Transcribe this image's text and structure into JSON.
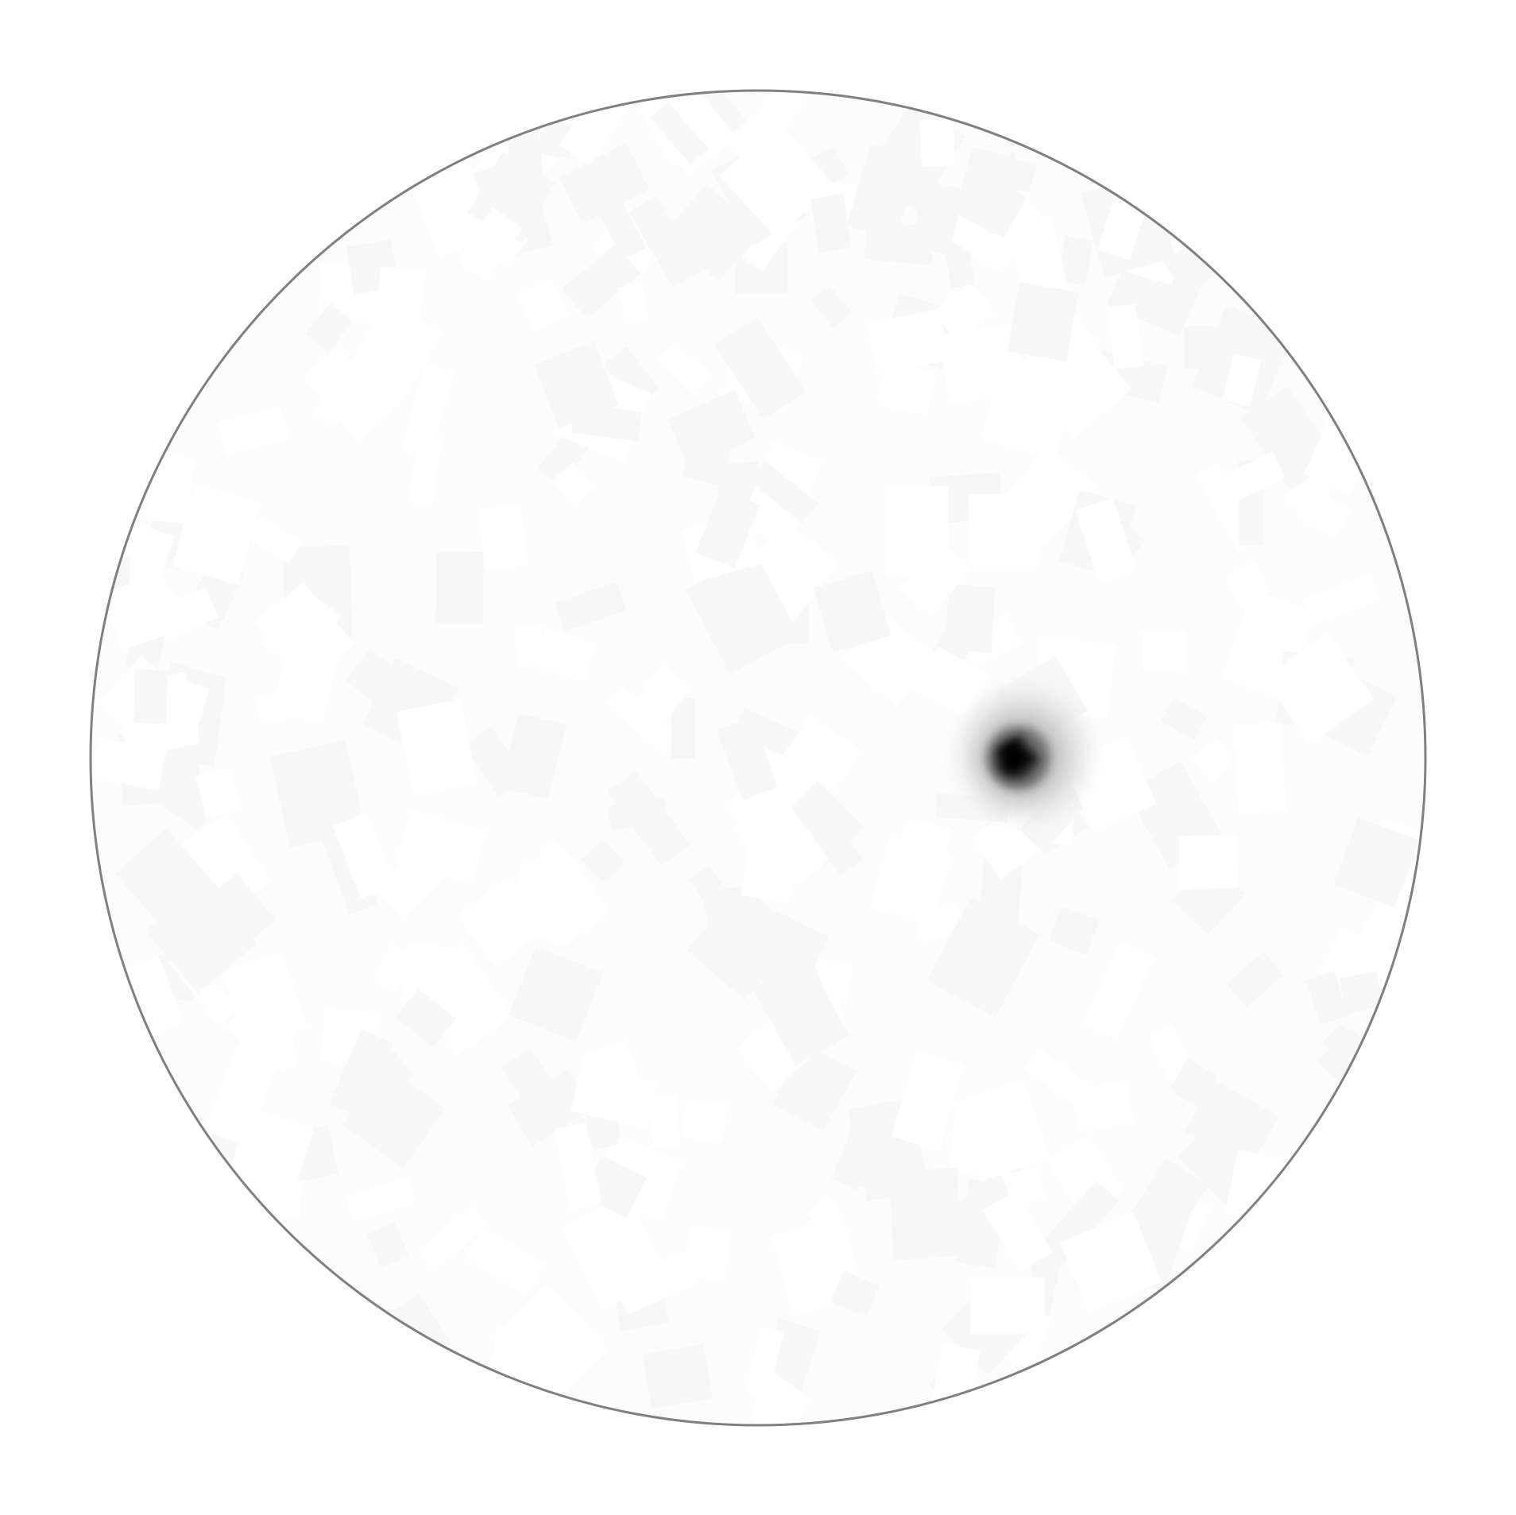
{
  "chart_data": {
    "type": "heatmap",
    "projection": "polar-disk",
    "title": "",
    "xlabel": "",
    "ylabel": "",
    "grid": false,
    "legend": "none",
    "colormap": [
      "#ffffff",
      "#000000"
    ],
    "background_level": 0.02,
    "peak": {
      "azimuth_deg": 0,
      "radius_fraction": 0.39,
      "intensity": 1.0
    }
  },
  "colors": {
    "boundary": "#808080",
    "background": "#ffffff",
    "disk_fill": "#fcfcfc",
    "hotspot": "#000000"
  }
}
